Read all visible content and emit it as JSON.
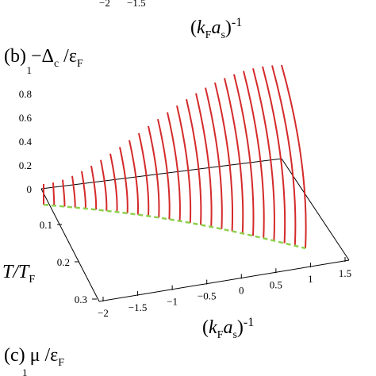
{
  "top_fragment": {
    "ticks": [
      "−2",
      "−1.5"
    ],
    "xlabel": [
      "(",
      "k",
      "F",
      "a",
      "s",
      ")",
      "-1"
    ]
  },
  "panel_b": {
    "label": [
      "(b) −Δ",
      "c",
      " /ε",
      "F"
    ],
    "zticks": [
      "1",
      "0.8",
      "0.6",
      "0.4",
      "0.2",
      "0"
    ],
    "tticks": [
      "0.1",
      "0.2",
      "0.3"
    ],
    "tlabel": [
      "T",
      "/T",
      "F"
    ],
    "xticks": [
      "−2",
      "−1.5",
      "−1",
      "−0.5",
      "0",
      "0.5",
      "1",
      "1.5"
    ],
    "xlabel": [
      "(",
      "k",
      "F",
      "a",
      "s",
      ")",
      "-1"
    ]
  },
  "panel_c": {
    "label": [
      "(c) μ /ε",
      "F"
    ],
    "tick": "1"
  }
}
